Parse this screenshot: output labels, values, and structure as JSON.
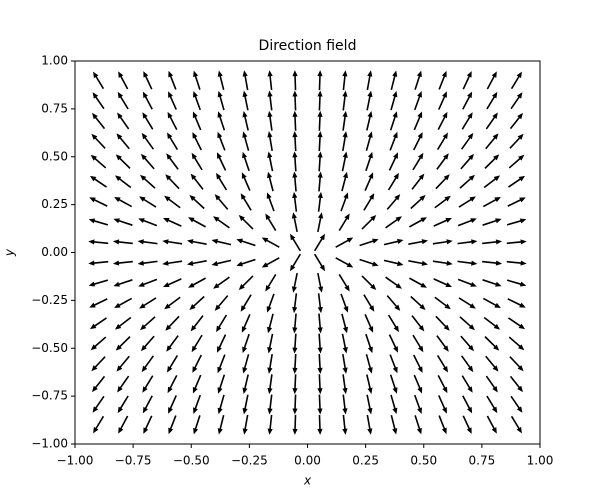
{
  "chart_data": {
    "type": "quiver",
    "title": "Direction field",
    "x_label": "x",
    "y_label": "y",
    "x": [
      -0.9,
      -0.794,
      -0.688,
      -0.582,
      -0.476,
      -0.371,
      -0.265,
      -0.159,
      -0.053,
      0.053,
      0.159,
      0.265,
      0.371,
      0.476,
      0.582,
      0.688,
      0.794,
      0.9
    ],
    "y": [
      -0.9,
      -0.794,
      -0.688,
      -0.582,
      -0.476,
      -0.371,
      -0.265,
      -0.159,
      -0.053,
      0.053,
      0.159,
      0.265,
      0.371,
      0.476,
      0.582,
      0.688,
      0.794,
      0.9
    ],
    "u": [
      -0.9,
      -0.794,
      -0.688,
      -0.582,
      -0.476,
      -0.371,
      -0.265,
      -0.159,
      -0.053,
      0.053,
      0.159,
      0.265,
      0.371,
      0.476,
      0.582,
      0.688,
      0.794,
      0.9
    ],
    "v": [
      -1.8,
      -1.588,
      -1.376,
      -1.165,
      -0.953,
      -0.741,
      -0.529,
      -0.318,
      -0.106,
      0.106,
      0.318,
      0.529,
      0.741,
      0.953,
      1.165,
      1.376,
      1.588,
      1.8
    ],
    "color": "#000000",
    "xlim": [
      -1,
      1
    ],
    "ylim": [
      -1,
      1
    ],
    "xticks": [
      {
        "value": -1,
        "label": "−1.00"
      },
      {
        "value": -0.75,
        "label": "−0.75"
      },
      {
        "value": -0.5,
        "label": "−0.50"
      },
      {
        "value": -0.25,
        "label": "−0.25"
      },
      {
        "value": 0,
        "label": "0.00"
      },
      {
        "value": 0.25,
        "label": "0.25"
      },
      {
        "value": 0.5,
        "label": "0.50"
      },
      {
        "value": 0.75,
        "label": "0.75"
      },
      {
        "value": 1,
        "label": "1.00"
      }
    ],
    "yticks": [
      {
        "value": -1,
        "label": "−1.00"
      },
      {
        "value": -0.75,
        "label": "−0.75"
      },
      {
        "value": -0.5,
        "label": "−0.50"
      },
      {
        "value": -0.25,
        "label": "−0.25"
      },
      {
        "value": 0,
        "label": "0.00"
      },
      {
        "value": 0.25,
        "label": "0.25"
      },
      {
        "value": 0.5,
        "label": "0.50"
      },
      {
        "value": 0.75,
        "label": "0.75"
      },
      {
        "value": 1,
        "label": "1.00"
      }
    ]
  }
}
